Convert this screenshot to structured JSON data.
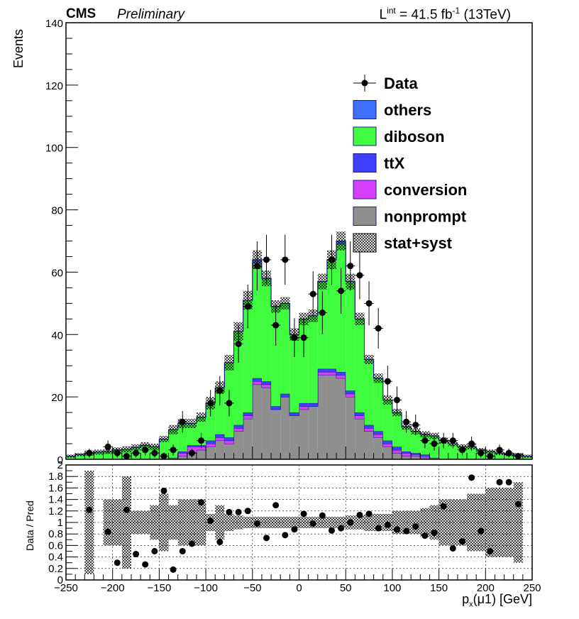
{
  "header": {
    "experiment": "CMS",
    "status": "Preliminary",
    "lumi_prefix": "L",
    "lumi_sup": "int",
    "lumi_value": " = 41.5 fb",
    "lumi_unit_sup": "-1",
    "lumi_energy": " (13TeV)"
  },
  "legend": {
    "entries": [
      {
        "label": "Data",
        "kind": "marker",
        "color": "#000000"
      },
      {
        "label": "others",
        "kind": "fill",
        "color": "#3f6ffc"
      },
      {
        "label": "diboson",
        "kind": "fill",
        "color": "#3ffc3f"
      },
      {
        "label": "ttX",
        "kind": "fill",
        "color": "#3f3ffc"
      },
      {
        "label": "conversion",
        "kind": "fill",
        "color": "#d63ffc"
      },
      {
        "label": "nonprompt",
        "kind": "fill",
        "color": "#8f8f8f"
      },
      {
        "label": "stat+syst",
        "kind": "hatch",
        "color": "#000000"
      }
    ]
  },
  "chart_data": [
    {
      "type": "histogram",
      "stacked": true,
      "ylabel": "Events",
      "ylim": [
        0,
        140
      ],
      "xlim": [
        -250,
        250
      ],
      "x_ticks": [
        "−250",
        "−200",
        "−150",
        "−100",
        "−50",
        "0",
        "50",
        "100",
        "150",
        "200",
        "250"
      ],
      "y_ticks": [
        "0",
        "20",
        "40",
        "60",
        "80",
        "100",
        "120",
        "140"
      ],
      "bin_width": 10,
      "bin_centers": [
        -245,
        -235,
        -225,
        -215,
        -205,
        -195,
        -185,
        -175,
        -165,
        -155,
        -145,
        -135,
        -125,
        -115,
        -105,
        -95,
        -85,
        -75,
        -65,
        -55,
        -45,
        -35,
        -25,
        -15,
        -5,
        5,
        15,
        25,
        35,
        45,
        55,
        65,
        75,
        85,
        95,
        105,
        115,
        125,
        135,
        145,
        155,
        165,
        175,
        185,
        195,
        205,
        215,
        225,
        235,
        245
      ],
      "series": [
        {
          "name": "nonprompt",
          "color": "#8f8f8f",
          "values": [
            0,
            0,
            0,
            0,
            0,
            0,
            0,
            0,
            0,
            0,
            0,
            0.5,
            1,
            2,
            3,
            4,
            6,
            5,
            9,
            13,
            24,
            23,
            16,
            20,
            14,
            16,
            17,
            27,
            27,
            26,
            20,
            13,
            9,
            7,
            4,
            2,
            1,
            1,
            0.5,
            0.5,
            0,
            0,
            0,
            0,
            0,
            0,
            0,
            0,
            0,
            0
          ]
        },
        {
          "name": "conversion",
          "color": "#d63ffc",
          "values": [
            0,
            0,
            0,
            0,
            0,
            0,
            0,
            0,
            0,
            0,
            0,
            0,
            1,
            2,
            1,
            1,
            1,
            1,
            1,
            1,
            1,
            1,
            0,
            0,
            0,
            1,
            0,
            1,
            1,
            1,
            1,
            1,
            1,
            1,
            1,
            1,
            1,
            0.5,
            0.5,
            0,
            0,
            0,
            0,
            0,
            0,
            0,
            0,
            0,
            0,
            0
          ]
        },
        {
          "name": "ttX",
          "color": "#3f3ffc",
          "values": [
            0,
            0,
            0,
            0,
            0,
            0,
            0,
            0,
            0,
            0,
            0,
            0,
            0.5,
            0.5,
            0.5,
            1,
            1,
            1,
            1,
            1,
            1,
            1,
            1,
            1,
            1,
            1,
            1,
            1,
            1,
            1,
            1,
            1,
            1,
            1,
            1,
            1,
            0.5,
            0.5,
            0.5,
            0,
            0,
            0,
            0,
            0,
            0,
            0,
            0,
            0,
            0,
            0
          ]
        },
        {
          "name": "diboson",
          "color": "#3ffc3f",
          "values": [
            1,
            1.5,
            2,
            2.3,
            2.5,
            3,
            3.2,
            3.8,
            4.5,
            4,
            6.5,
            9,
            9,
            7,
            9,
            12,
            15,
            24,
            30,
            36,
            37,
            33,
            32,
            29,
            25,
            27,
            28,
            28,
            35,
            41,
            35,
            30,
            21,
            17,
            13,
            11,
            8,
            7,
            6.5,
            7,
            6,
            5,
            4,
            4,
            3,
            2.5,
            2,
            1.5,
            1.5,
            1
          ]
        },
        {
          "name": "others",
          "color": "#3f6ffc",
          "values": [
            0,
            0,
            0,
            0,
            0,
            0,
            0,
            0,
            0,
            0,
            0,
            0,
            0,
            0,
            0,
            0,
            0,
            0,
            0,
            0,
            1,
            0,
            0,
            0,
            0,
            0,
            0,
            0,
            0,
            1,
            0,
            0,
            0,
            0,
            0,
            0,
            0,
            0,
            0,
            0,
            0,
            0,
            0,
            0,
            0,
            0,
            0,
            0,
            0,
            0
          ]
        },
        {
          "name": "Data",
          "kind": "points",
          "color": "#000000",
          "values": [
            0,
            0,
            2,
            0,
            4,
            2,
            1,
            2,
            3,
            2,
            1,
            3,
            12,
            2,
            6,
            18,
            22,
            18,
            37,
            49,
            62,
            64,
            43,
            64,
            39,
            39,
            53,
            47,
            64,
            54,
            62,
            59,
            50,
            42,
            25,
            19,
            12,
            11,
            6,
            5,
            6,
            6,
            3,
            5,
            2,
            1,
            3,
            2,
            1,
            0
          ]
        },
        {
          "name": "stat+syst",
          "kind": "band",
          "values": [
            0.5,
            0.5,
            0.8,
            0.8,
            0.8,
            0.8,
            1,
            1,
            1,
            1,
            1,
            1.5,
            1.5,
            1.5,
            1.5,
            2,
            2,
            2.5,
            3,
            3,
            3,
            2.5,
            2,
            2,
            2,
            2,
            2,
            2.5,
            3,
            3,
            2.5,
            2,
            1.5,
            1.5,
            1.5,
            1.2,
            1,
            1,
            1,
            1,
            1,
            0.8,
            0.8,
            0.8,
            0.6,
            0.6,
            0.6,
            0.5,
            0.5,
            0.5
          ]
        }
      ]
    },
    {
      "type": "scatter",
      "ylabel": "Data / Pred",
      "xlabel": "p_x(μ1) [GeV]",
      "ylim": [
        0,
        2
      ],
      "xlim": [
        -250,
        250
      ],
      "y_ticks": [
        "0",
        "0.2",
        "0.4",
        "0.6",
        "0.8",
        "1",
        "1.2",
        "1.4",
        "1.6",
        "1.8",
        "2"
      ],
      "x_ticks": [
        "−250",
        "−200",
        "−150",
        "−100",
        "−50",
        "0",
        "50",
        "100",
        "150",
        "200",
        "250"
      ],
      "grid": true,
      "bin_centers": [
        -225,
        -205,
        -195,
        -185,
        -175,
        -165,
        -155,
        -145,
        -135,
        -125,
        -115,
        -105,
        -95,
        -85,
        -75,
        -65,
        -55,
        -45,
        -35,
        -25,
        -15,
        -5,
        5,
        15,
        25,
        35,
        45,
        55,
        65,
        75,
        85,
        95,
        105,
        115,
        125,
        135,
        145,
        155,
        165,
        175,
        185,
        195,
        205,
        215,
        225,
        235
      ],
      "values": [
        1.22,
        0.84,
        0.3,
        1.22,
        0.45,
        0.27,
        0.5,
        1.55,
        0.18,
        0.5,
        0.63,
        1.35,
        1.03,
        0.66,
        1.18,
        1.18,
        1.2,
        0.98,
        0.73,
        1.3,
        0.78,
        0.88,
        1.15,
        0.98,
        1.12,
        0.86,
        0.9,
        1.0,
        1.13,
        1.15,
        0.9,
        0.96,
        0.88,
        0.85,
        0.93,
        0.77,
        0.82,
        1.28,
        0.55,
        0.67,
        1.78,
        0.85,
        0.5,
        1.7,
        1.7,
        1.32
      ],
      "band_err": [
        0.9,
        0.4,
        0.4,
        0.8,
        0.2,
        0.2,
        0.3,
        0.5,
        0.3,
        0.4,
        0.4,
        0.4,
        0.15,
        0.3,
        0.15,
        0.12,
        0.1,
        0.1,
        0.1,
        0.1,
        0.1,
        0.1,
        0.1,
        0.1,
        0.1,
        0.1,
        0.1,
        0.12,
        0.12,
        0.15,
        0.15,
        0.15,
        0.2,
        0.2,
        0.2,
        0.25,
        0.3,
        0.4,
        0.4,
        0.4,
        0.5,
        0.5,
        0.6,
        0.6,
        0.6,
        0.7
      ]
    }
  ]
}
